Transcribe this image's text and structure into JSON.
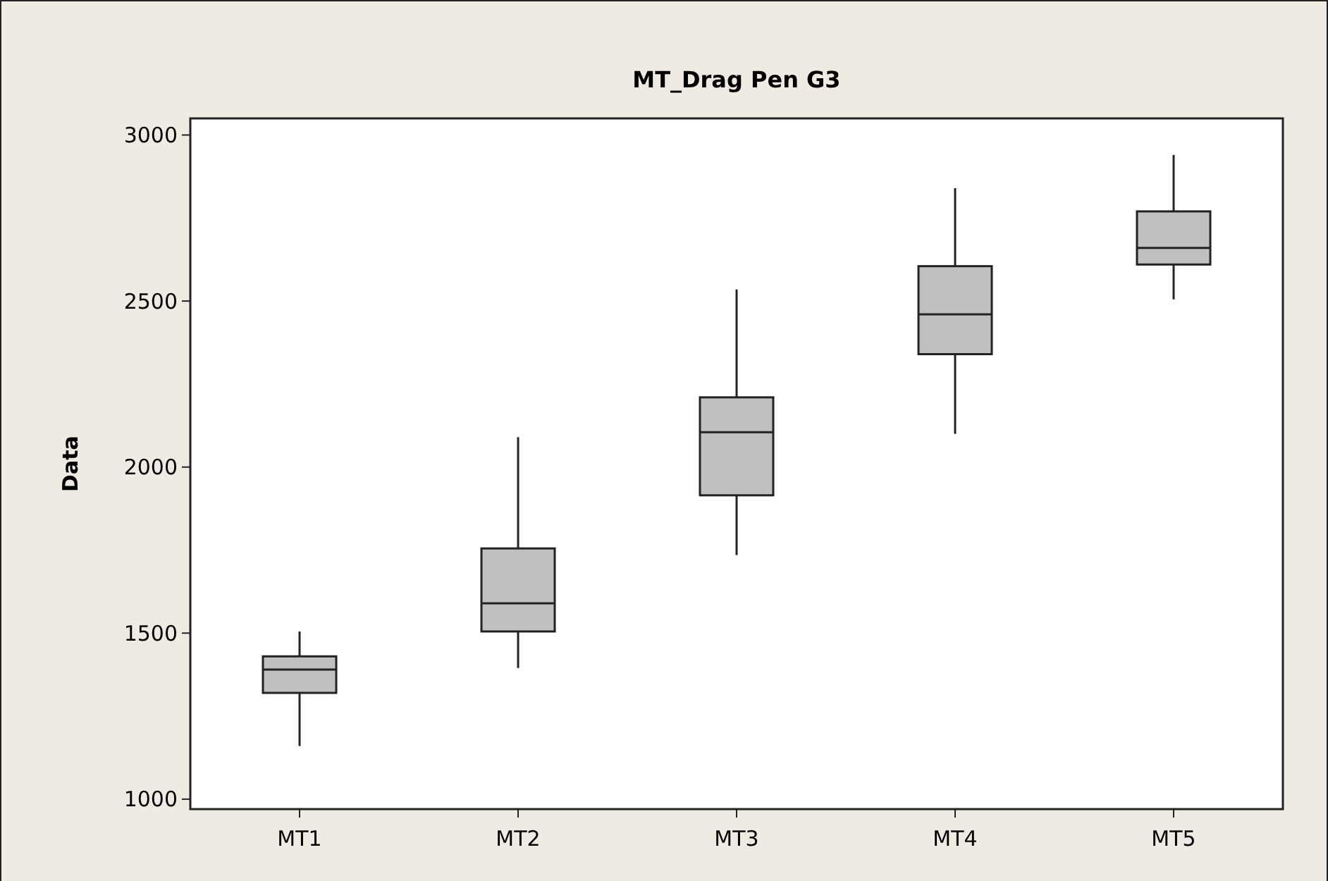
{
  "chart_data": {
    "type": "box",
    "title": "MT_Drag Pen G3",
    "ylabel": "Data",
    "categories": [
      "MT1",
      "MT2",
      "MT3",
      "MT4",
      "MT5"
    ],
    "color": "#c0c0c0",
    "boxes": [
      {
        "low": 1160,
        "q1": 1320,
        "median": 1390,
        "q3": 1430,
        "high": 1505
      },
      {
        "low": 1395,
        "q1": 1505,
        "median": 1590,
        "q3": 1755,
        "high": 2090
      },
      {
        "low": 1735,
        "q1": 1915,
        "median": 2105,
        "q3": 2210,
        "high": 2535
      },
      {
        "low": 2100,
        "q1": 2340,
        "median": 2460,
        "q3": 2605,
        "high": 2840
      },
      {
        "low": 2505,
        "q1": 2610,
        "median": 2660,
        "q3": 2770,
        "high": 2940
      }
    ],
    "ylim": [
      970,
      3050
    ],
    "yticks": [
      1000,
      1500,
      2000,
      2500,
      3000
    ]
  }
}
